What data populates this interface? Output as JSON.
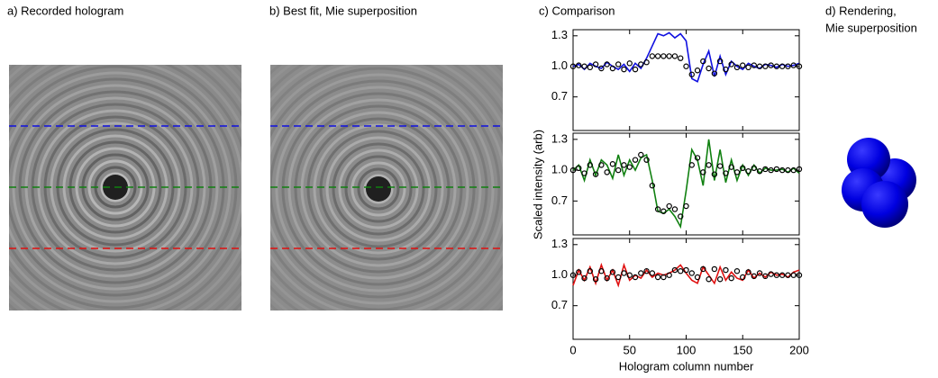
{
  "panels": [
    {
      "title": "a) Recorded hologram"
    },
    {
      "title": "b) Best fit, Mie superposition"
    },
    {
      "title_lines": [
        "d) Rendering,",
        "Mie superposition"
      ]
    }
  ],
  "chart_data": [
    {
      "type": "line",
      "title": "c) Comparison",
      "x": [
        0,
        5,
        10,
        15,
        20,
        25,
        30,
        35,
        40,
        45,
        50,
        55,
        60,
        65,
        70,
        75,
        80,
        85,
        90,
        95,
        100,
        105,
        110,
        115,
        120,
        125,
        130,
        135,
        140,
        145,
        150,
        155,
        160,
        165,
        170,
        175,
        180,
        185,
        190,
        195,
        200
      ],
      "xlim": [
        0,
        200
      ],
      "ylim": [
        0.37,
        1.36
      ],
      "yticks": [
        0.7,
        {
          "value": 1.0,
          "label": "1.0"
        },
        1.3
      ],
      "series": [
        {
          "color": "#1010e0",
          "values": [
            1.0,
            1.02,
            0.97,
            1.03,
            1.0,
            0.98,
            1.04,
            1.0,
            0.97,
            1.02,
            0.95,
            1.03,
            0.98,
            1.08,
            1.2,
            1.32,
            1.3,
            1.33,
            1.28,
            1.32,
            1.25,
            0.88,
            0.85,
            1.02,
            1.15,
            0.9,
            1.1,
            0.92,
            1.05,
            1.0,
            0.97,
            1.03,
            1.0,
            0.98,
            1.02,
            1.01,
            0.99,
            1.02,
            1.0,
            1.01,
            1.03
          ]
        },
        {
          "color": "#000000",
          "marker": "circle",
          "values": [
            1.0,
            1.01,
            1.0,
            0.99,
            1.02,
            0.98,
            1.02,
            0.98,
            1.02,
            0.97,
            1.03,
            0.97,
            1.02,
            1.04,
            1.1,
            1.1,
            1.1,
            1.1,
            1.1,
            1.08,
            1.0,
            0.92,
            0.96,
            1.05,
            0.98,
            0.93,
            1.05,
            0.97,
            1.02,
            0.99,
            1.01,
            0.99,
            1.01,
            1.0,
            1.0,
            1.01,
            1.0,
            1.0,
            1.0,
            1.01,
            1.0
          ]
        }
      ]
    },
    {
      "type": "line",
      "y_label": "Scaled intensity (arb)",
      "x": [
        0,
        5,
        10,
        15,
        20,
        25,
        30,
        35,
        40,
        45,
        50,
        55,
        60,
        65,
        70,
        75,
        80,
        85,
        90,
        95,
        100,
        105,
        110,
        115,
        120,
        125,
        130,
        135,
        140,
        145,
        150,
        155,
        160,
        165,
        170,
        175,
        180,
        185,
        190,
        195,
        200
      ],
      "xlim": [
        0,
        200
      ],
      "ylim": [
        0.37,
        1.36
      ],
      "yticks": [
        0.7,
        {
          "value": 1.0,
          "label": "1.0"
        },
        1.3
      ],
      "series": [
        {
          "color": "#108010",
          "values": [
            1.0,
            1.05,
            0.9,
            1.1,
            0.95,
            1.1,
            1.05,
            0.92,
            1.15,
            0.95,
            1.1,
            1.0,
            1.12,
            1.15,
            0.9,
            0.6,
            0.58,
            0.62,
            0.55,
            0.45,
            0.8,
            1.2,
            1.1,
            0.85,
            1.3,
            0.9,
            1.2,
            0.88,
            1.1,
            0.9,
            1.05,
            0.95,
            1.05,
            0.97,
            1.02,
            1.0,
            1.0,
            1.01,
            0.98,
            1.02,
            0.97
          ]
        },
        {
          "color": "#000000",
          "marker": "circle",
          "values": [
            1.0,
            1.02,
            0.97,
            1.05,
            0.96,
            1.05,
            0.98,
            1.06,
            1.0,
            1.05,
            1.03,
            1.1,
            1.15,
            1.1,
            0.85,
            0.62,
            0.6,
            0.65,
            0.62,
            0.55,
            0.65,
            1.05,
            1.12,
            0.98,
            1.05,
            0.96,
            1.04,
            0.97,
            1.03,
            0.98,
            1.02,
            0.99,
            1.02,
            0.99,
            1.01,
            1.0,
            1.01,
            1.0,
            1.0,
            1.0,
            1.01
          ]
        }
      ]
    },
    {
      "type": "line",
      "x_label": "Hologram column number",
      "x": [
        0,
        5,
        10,
        15,
        20,
        25,
        30,
        35,
        40,
        45,
        50,
        55,
        60,
        65,
        70,
        75,
        80,
        85,
        90,
        95,
        100,
        105,
        110,
        115,
        120,
        125,
        130,
        135,
        140,
        145,
        150,
        155,
        160,
        165,
        170,
        175,
        180,
        185,
        190,
        195,
        200
      ],
      "xlim": [
        0,
        200
      ],
      "ylim": [
        0.37,
        1.36
      ],
      "xticks": [
        0,
        50,
        100,
        150,
        200
      ],
      "yticks": [
        0.7,
        {
          "value": 1.0,
          "label": "1.0"
        },
        1.3
      ],
      "series": [
        {
          "color": "#e01010",
          "values": [
            0.9,
            1.05,
            0.95,
            1.08,
            0.92,
            1.1,
            0.95,
            1.05,
            0.9,
            1.1,
            0.95,
            1.0,
            0.97,
            1.05,
            0.98,
            1.02,
            1.0,
            1.02,
            1.05,
            1.1,
            1.02,
            0.95,
            0.92,
            1.08,
            1.0,
            0.92,
            1.08,
            0.95,
            1.03,
            0.97,
            0.95,
            1.05,
            0.97,
            1.02,
            0.98,
            1.03,
            1.0,
            1.01,
            0.98,
            1.03,
            1.05
          ]
        },
        {
          "color": "#000000",
          "marker": "circle",
          "values": [
            1.0,
            1.03,
            0.97,
            1.04,
            0.96,
            1.04,
            0.97,
            1.03,
            0.98,
            1.02,
            1.0,
            0.98,
            1.02,
            1.04,
            1.02,
            0.98,
            0.98,
            1.0,
            1.05,
            1.04,
            1.05,
            1.02,
            0.98,
            1.06,
            0.96,
            1.06,
            0.96,
            1.05,
            0.97,
            1.04,
            0.98,
            1.03,
            0.99,
            1.02,
            0.99,
            1.01,
            1.0,
            1.0,
            1.0,
            1.0,
            1.0
          ]
        }
      ]
    }
  ]
}
